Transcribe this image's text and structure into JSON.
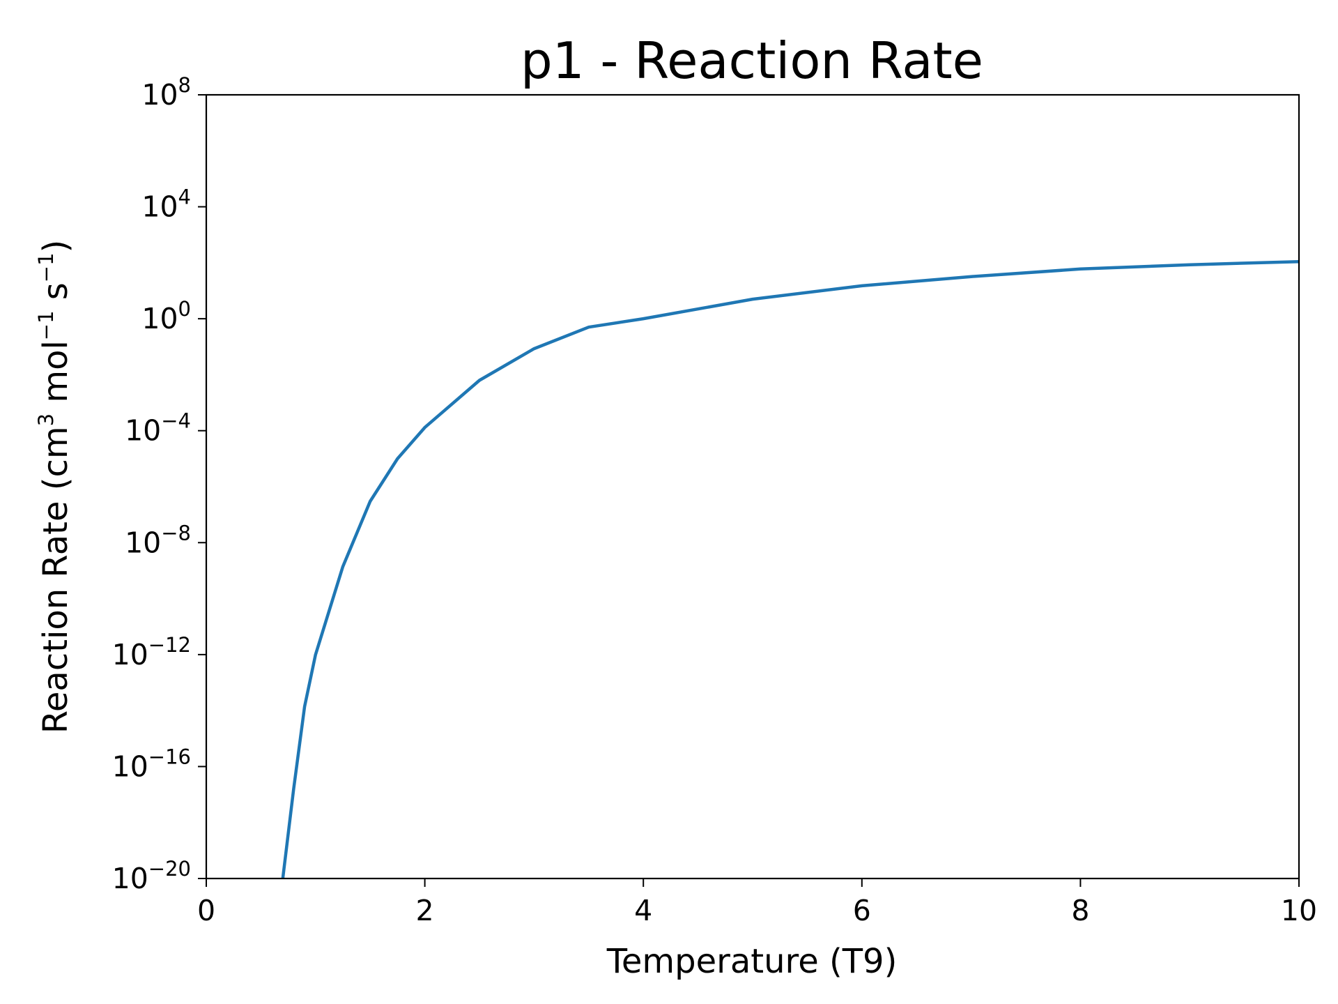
{
  "chart_data": {
    "type": "line",
    "title": "p1 - Reaction Rate",
    "xlabel": "Temperature (T9)",
    "ylabel_parts": {
      "text1": "Reaction Rate (cm",
      "sup1": "3",
      "text2": " mol",
      "sup2": "−1",
      "text3": " s",
      "sup3": "−1",
      "text4": ")"
    },
    "xlim": [
      0,
      10
    ],
    "ylim": [
      1e-20,
      100000000.0
    ],
    "yscale": "log",
    "grid": false,
    "x_ticks": [
      {
        "value": 0,
        "label": "0"
      },
      {
        "value": 2,
        "label": "2"
      },
      {
        "value": 4,
        "label": "4"
      },
      {
        "value": 6,
        "label": "6"
      },
      {
        "value": 8,
        "label": "8"
      },
      {
        "value": 10,
        "label": "10"
      }
    ],
    "y_ticks": [
      {
        "value": 100000000.0,
        "base": "10",
        "exp": "8"
      },
      {
        "value": 10000.0,
        "base": "10",
        "exp": "4"
      },
      {
        "value": 1,
        "base": "10",
        "exp": "0"
      },
      {
        "value": 0.0001,
        "base": "10",
        "exp": "−4"
      },
      {
        "value": 1e-08,
        "base": "10",
        "exp": "−8"
      },
      {
        "value": 1e-12,
        "base": "10",
        "exp": "−12"
      },
      {
        "value": 1e-16,
        "base": "10",
        "exp": "−16"
      },
      {
        "value": 1e-20,
        "base": "10",
        "exp": "−20"
      }
    ],
    "series": [
      {
        "color": "#1f77b4",
        "x": [
          0.7,
          0.8,
          0.9,
          1.0,
          1.25,
          1.5,
          1.75,
          2.0,
          2.5,
          3.0,
          3.5,
          4.0,
          5.0,
          6.0,
          7.0,
          8.0,
          9.0,
          10.0
        ],
        "y": [
          1e-20,
          1.6e-17,
          1.4e-14,
          1e-12,
          1.4e-09,
          3e-07,
          1e-05,
          0.00013,
          0.0063,
          0.085,
          0.5,
          1.0,
          5.0,
          15,
          32,
          60,
          85,
          110
        ]
      }
    ]
  }
}
